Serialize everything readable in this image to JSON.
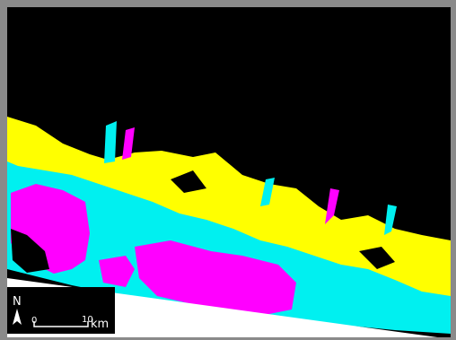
{
  "map": {
    "north_label": "N",
    "scale_bar": {
      "start": "0",
      "end": "10",
      "unit": "km"
    }
  }
}
